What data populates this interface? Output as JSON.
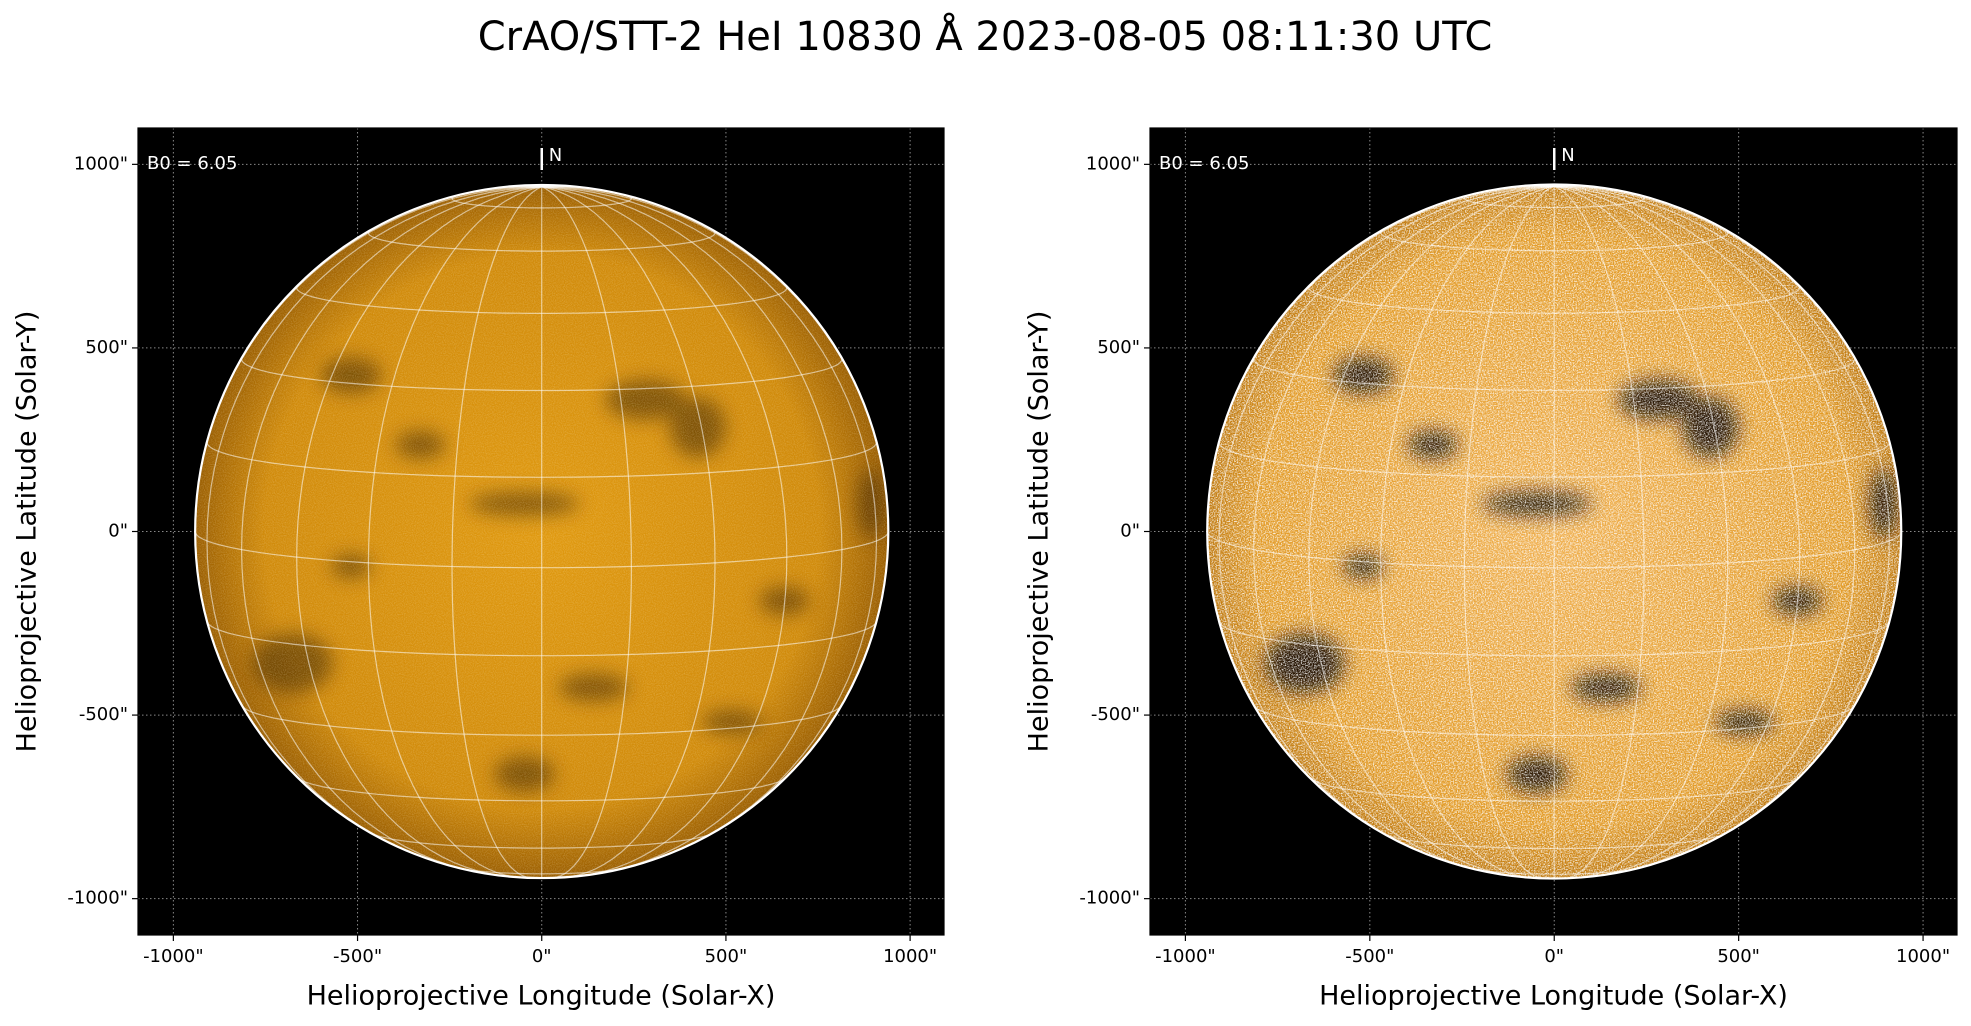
{
  "title": "CrAO/STT-2 HeI 10830 Å 2023-08-05 08:11:30 UTC",
  "chart_data": [
    {
      "type": "image",
      "xlabel": "Helioprojective Longitude (Solar-X)",
      "ylabel": "Helioprojective Latitude (Solar-Y)",
      "annotation": "B0 = 6.05",
      "north_label": "N",
      "xlim": [
        -1096,
        1092
      ],
      "ylim": [
        -1099,
        1099
      ],
      "grid": true,
      "xticks": [
        {
          "value": -1000,
          "label": "-1000\""
        },
        {
          "value": -500,
          "label": "-500\""
        },
        {
          "value": 0,
          "label": "0\""
        },
        {
          "value": 500,
          "label": "500\""
        },
        {
          "value": 1000,
          "label": "1000\""
        }
      ],
      "yticks": [
        {
          "value": -1000,
          "label": "-1000\""
        },
        {
          "value": -500,
          "label": "-500\""
        },
        {
          "value": 0,
          "label": "0\""
        },
        {
          "value": 500,
          "label": "500\""
        },
        {
          "value": 1000,
          "label": "1000\""
        }
      ]
    },
    {
      "type": "image",
      "xlabel": "Helioprojective Longitude (Solar-X)",
      "ylabel": "Helioprojective Latitude (Solar-Y)",
      "annotation": "B0 = 6.05",
      "north_label": "N",
      "xlim": [
        -1096,
        1092
      ],
      "ylim": [
        -1099,
        1099
      ],
      "grid": true,
      "xticks": [
        {
          "value": -1000,
          "label": "-1000\""
        },
        {
          "value": -500,
          "label": "-500\""
        },
        {
          "value": 0,
          "label": "0\""
        },
        {
          "value": 500,
          "label": "500\""
        },
        {
          "value": 1000,
          "label": "1000\""
        }
      ],
      "yticks": [
        {
          "value": -1000,
          "label": "-1000\""
        },
        {
          "value": -500,
          "label": "-500\""
        },
        {
          "value": 0,
          "label": "0\""
        },
        {
          "value": 500,
          "label": "500\""
        },
        {
          "value": 1000,
          "label": "1000\""
        }
      ]
    }
  ]
}
